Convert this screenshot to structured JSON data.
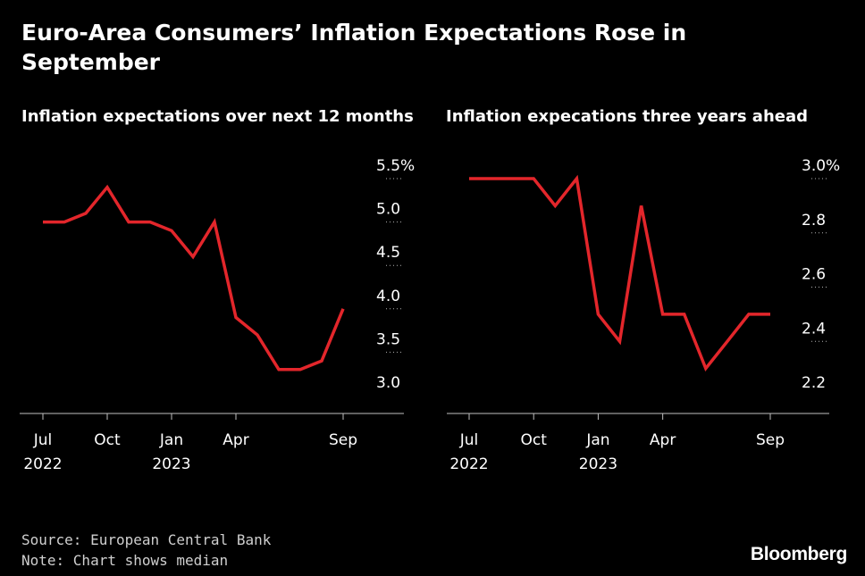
{
  "title": "Euro-Area Consumers’ Inflation Expectations Rose in September",
  "footer": {
    "source": "Source: European Central Bank",
    "note": "Note: Chart shows median"
  },
  "logo": "Bloomberg",
  "colors": {
    "line": "#e3262b",
    "background": "#000000",
    "text": "#ffffff",
    "grid": "#ffffff"
  },
  "chart_data": [
    {
      "type": "line",
      "title": "Inflation expectations over next 12 months",
      "xlabel": "",
      "ylabel": "",
      "x": [
        "Jul 2022",
        "Aug 2022",
        "Sep 2022",
        "Oct 2022",
        "Nov 2022",
        "Dec 2022",
        "Jan 2023",
        "Feb 2023",
        "Mar 2023",
        "Apr 2023",
        "May 2023",
        "Jun 2023",
        "Jul 2023",
        "Aug 2023",
        "Sep 2023"
      ],
      "series": [
        {
          "values": [
            5.0,
            5.0,
            5.1,
            5.4,
            5.0,
            5.0,
            4.9,
            4.6,
            5.0,
            3.9,
            3.7,
            3.3,
            3.3,
            3.4,
            4.0
          ]
        }
      ],
      "ylim": [
        3.0,
        5.5
      ],
      "yticks": [
        "3.0",
        "3.5",
        "4.0",
        "4.5",
        "5.0",
        "5.5%"
      ],
      "xticks": [
        {
          "x": "Jul 2022",
          "label": "Jul",
          "year": "2022"
        },
        {
          "x": "Oct 2022",
          "label": "Oct",
          "year": ""
        },
        {
          "x": "Jan 2023",
          "label": "Jan",
          "year": "2023"
        },
        {
          "x": "Apr 2023",
          "label": "Apr",
          "year": ""
        },
        {
          "x": "Sep 2023",
          "label": "Sep",
          "year": ""
        }
      ],
      "grid": true,
      "axis_side": "right"
    },
    {
      "type": "line",
      "title": "Inflation expecations three years ahead",
      "xlabel": "",
      "ylabel": "",
      "x": [
        "Jul 2022",
        "Aug 2022",
        "Sep 2022",
        "Oct 2022",
        "Nov 2022",
        "Dec 2022",
        "Jan 2023",
        "Feb 2023",
        "Mar 2023",
        "Apr 2023",
        "May 2023",
        "Jun 2023",
        "Jul 2023",
        "Aug 2023",
        "Sep 2023"
      ],
      "series": [
        {
          "values": [
            3.0,
            3.0,
            3.0,
            3.0,
            2.9,
            3.0,
            2.5,
            2.4,
            2.9,
            2.5,
            2.5,
            2.3,
            2.4,
            2.5,
            2.5
          ]
        }
      ],
      "ylim": [
        2.2,
        3.0
      ],
      "yticks": [
        "2.2",
        "2.4",
        "2.6",
        "2.8",
        "3.0%"
      ],
      "xticks": [
        {
          "x": "Jul 2022",
          "label": "Jul",
          "year": "2022"
        },
        {
          "x": "Oct 2022",
          "label": "Oct",
          "year": ""
        },
        {
          "x": "Jan 2023",
          "label": "Jan",
          "year": "2023"
        },
        {
          "x": "Apr 2023",
          "label": "Apr",
          "year": ""
        },
        {
          "x": "Sep 2023",
          "label": "Sep",
          "year": ""
        }
      ],
      "grid": true,
      "axis_side": "right"
    }
  ]
}
